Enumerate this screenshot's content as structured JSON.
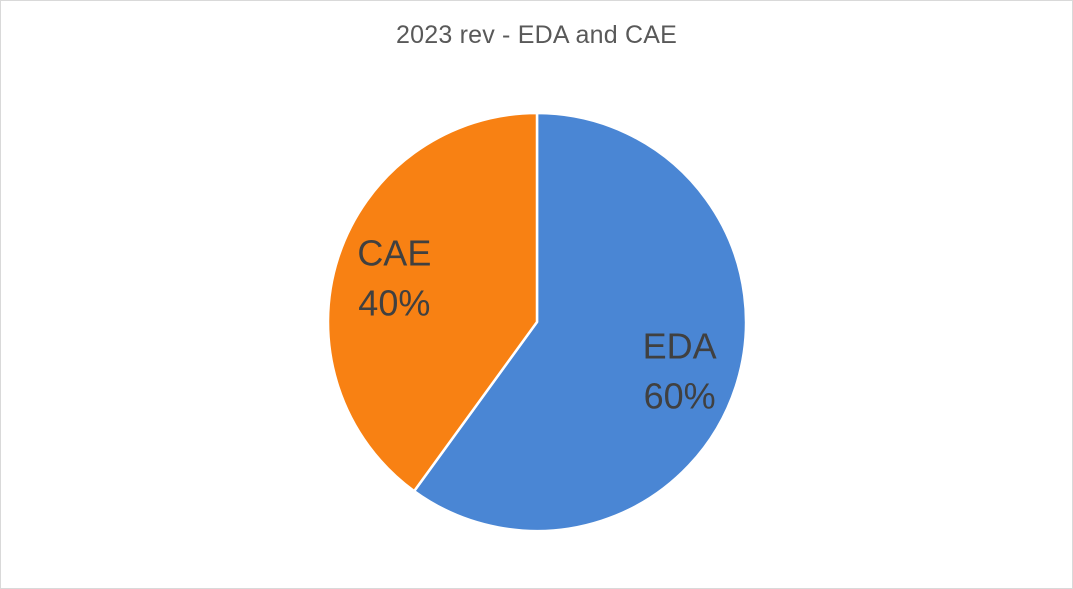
{
  "chart_data": {
    "type": "pie",
    "title": "2023 rev - EDA and CAE",
    "categories": [
      "EDA",
      "CAE"
    ],
    "values": [
      60,
      40
    ],
    "value_labels": [
      "60%",
      "40%"
    ],
    "colors": [
      "#4a86d4",
      "#f88113"
    ],
    "legend": "none",
    "start_angle_deg": 0,
    "direction": "clockwise"
  }
}
